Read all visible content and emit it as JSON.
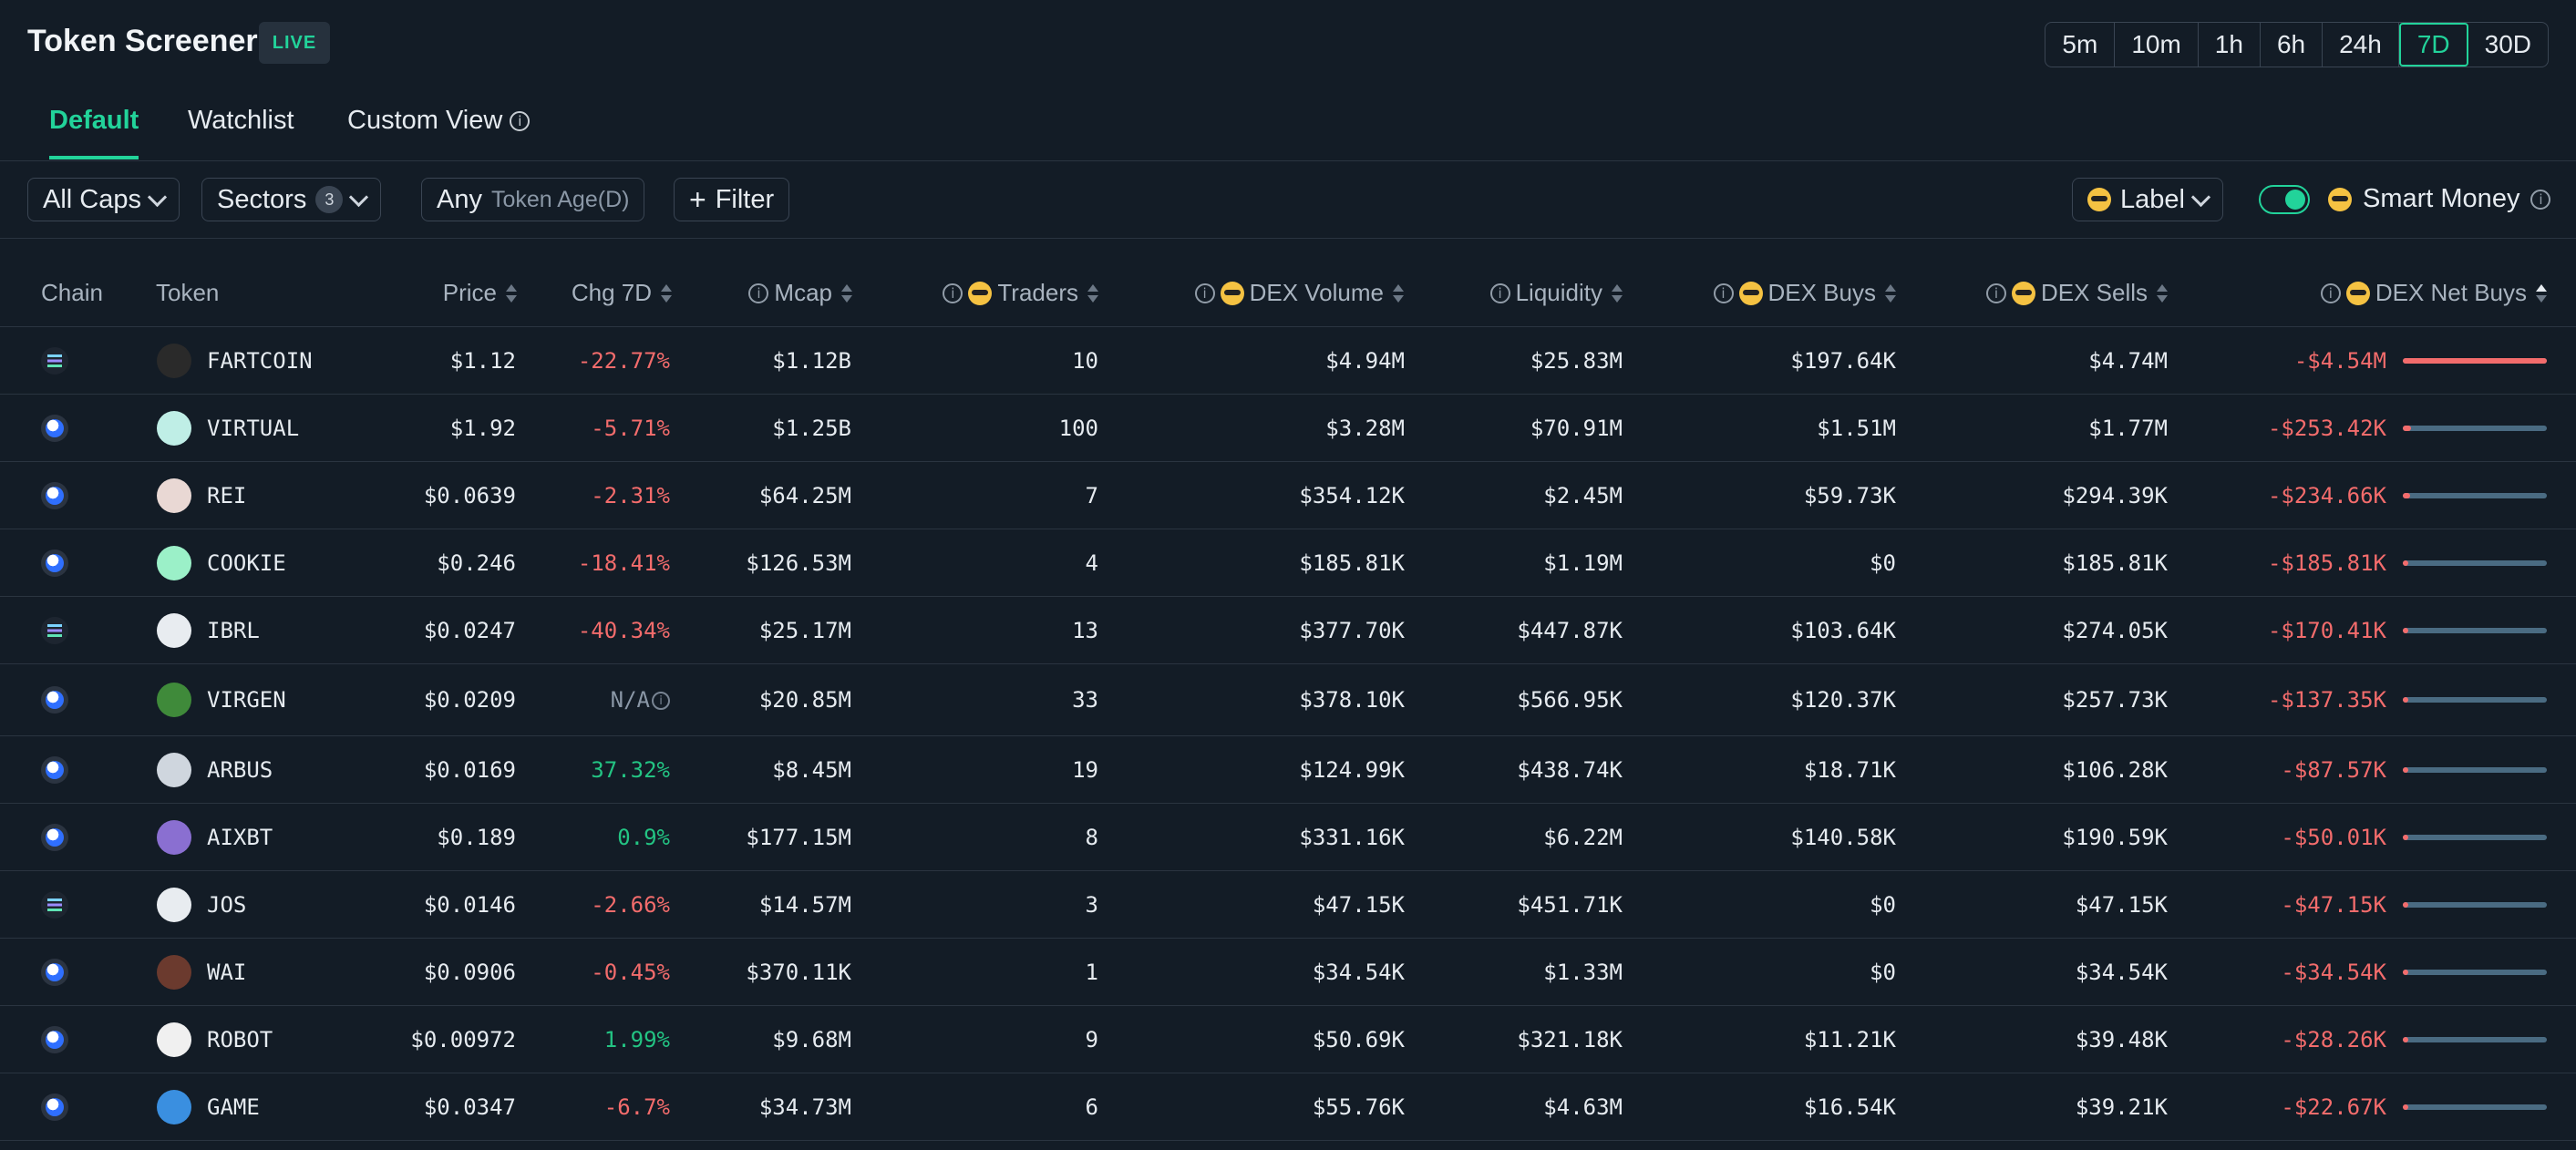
{
  "header": {
    "title": "Token Screener",
    "live_badge": "LIVE",
    "time_ranges": [
      "5m",
      "10m",
      "1h",
      "6h",
      "24h",
      "7D",
      "30D"
    ],
    "active_time_range": "7D"
  },
  "tabs": [
    {
      "label": "Default",
      "active": true
    },
    {
      "label": "Watchlist",
      "active": false
    },
    {
      "label": "Custom View",
      "active": false
    }
  ],
  "filters": {
    "caps": "All Caps",
    "sectors": "Sectors",
    "sectors_count": "3",
    "age_any": "Any",
    "age_label": "Token Age(D)",
    "filter": "Filter",
    "label": "Label",
    "smart_money": "Smart Money",
    "smart_money_enabled": true
  },
  "columns": {
    "chain": "Chain",
    "token": "Token",
    "price": "Price",
    "chg": "Chg 7D",
    "mcap": "Mcap",
    "traders": "Traders",
    "dex_volume": "DEX Volume",
    "liquidity": "Liquidity",
    "dex_buys": "DEX Buys",
    "dex_sells": "DEX Sells",
    "dex_net_buys": "DEX Net Buys"
  },
  "colors": {
    "accent": "#22d39a",
    "negative": "#f36c6c",
    "positive": "#23c483",
    "background": "#131c26"
  },
  "rows": [
    {
      "chain": "solana",
      "icon": "fartcoin-icon",
      "icon_color": "#2a2a2a",
      "token": "FARTCOIN",
      "price": "$1.12",
      "chg": "-22.77%",
      "chg_dir": "neg",
      "mcap": "$1.12B",
      "traders": "10",
      "dex_volume": "$4.94M",
      "liquidity": "$25.83M",
      "dex_buys": "$197.64K",
      "dex_sells": "$4.74M",
      "net_buys": "-$4.54M",
      "net_share": 1.0
    },
    {
      "chain": "base",
      "icon": "virtual-icon",
      "icon_color": "#bfeee6",
      "token": "VIRTUAL",
      "price": "$1.92",
      "chg": "-5.71%",
      "chg_dir": "neg",
      "mcap": "$1.25B",
      "traders": "100",
      "dex_volume": "$3.28M",
      "liquidity": "$70.91M",
      "dex_buys": "$1.51M",
      "dex_sells": "$1.77M",
      "net_buys": "-$253.42K",
      "net_share": 0.056
    },
    {
      "chain": "base",
      "icon": "rei-icon",
      "icon_color": "#e9d8d4",
      "token": "REI",
      "price": "$0.0639",
      "chg": "-2.31%",
      "chg_dir": "neg",
      "mcap": "$64.25M",
      "traders": "7",
      "dex_volume": "$354.12K",
      "liquidity": "$2.45M",
      "dex_buys": "$59.73K",
      "dex_sells": "$294.39K",
      "net_buys": "-$234.66K",
      "net_share": 0.052
    },
    {
      "chain": "base",
      "icon": "cookie-icon",
      "icon_color": "#9bf0c8",
      "token": "COOKIE",
      "price": "$0.246",
      "chg": "-18.41%",
      "chg_dir": "neg",
      "mcap": "$126.53M",
      "traders": "4",
      "dex_volume": "$185.81K",
      "liquidity": "$1.19M",
      "dex_buys": "$0",
      "dex_sells": "$185.81K",
      "net_buys": "-$185.81K",
      "net_share": 0.041
    },
    {
      "chain": "solana",
      "icon": "ibrl-icon",
      "icon_color": "#e8ecf0",
      "token": "IBRL",
      "price": "$0.0247",
      "chg": "-40.34%",
      "chg_dir": "neg",
      "mcap": "$25.17M",
      "traders": "13",
      "dex_volume": "$377.70K",
      "liquidity": "$447.87K",
      "dex_buys": "$103.64K",
      "dex_sells": "$274.05K",
      "net_buys": "-$170.41K",
      "net_share": 0.038
    },
    {
      "chain": "base",
      "icon": "virgen-icon",
      "icon_color": "#3f8a3a",
      "token": "VIRGEN",
      "price": "$0.0209",
      "chg": "N/A",
      "chg_dir": "na",
      "mcap": "$20.85M",
      "traders": "33",
      "dex_volume": "$378.10K",
      "liquidity": "$566.95K",
      "dex_buys": "$120.37K",
      "dex_sells": "$257.73K",
      "net_buys": "-$137.35K",
      "net_share": 0.03
    },
    {
      "chain": "base",
      "icon": "arbus-icon",
      "icon_color": "#cfd6de",
      "token": "ARBUS",
      "price": "$0.0169",
      "chg": "37.32%",
      "chg_dir": "pos",
      "mcap": "$8.45M",
      "traders": "19",
      "dex_volume": "$124.99K",
      "liquidity": "$438.74K",
      "dex_buys": "$18.71K",
      "dex_sells": "$106.28K",
      "net_buys": "-$87.57K",
      "net_share": 0.019
    },
    {
      "chain": "base",
      "icon": "aixbt-icon",
      "icon_color": "#8a6fd1",
      "token": "AIXBT",
      "price": "$0.189",
      "chg": "0.9%",
      "chg_dir": "pos",
      "mcap": "$177.15M",
      "traders": "8",
      "dex_volume": "$331.16K",
      "liquidity": "$6.22M",
      "dex_buys": "$140.58K",
      "dex_sells": "$190.59K",
      "net_buys": "-$50.01K",
      "net_share": 0.011
    },
    {
      "chain": "solana",
      "icon": "jos-icon",
      "icon_color": "#e8ecf0",
      "token": "JOS",
      "price": "$0.0146",
      "chg": "-2.66%",
      "chg_dir": "neg",
      "mcap": "$14.57M",
      "traders": "3",
      "dex_volume": "$47.15K",
      "liquidity": "$451.71K",
      "dex_buys": "$0",
      "dex_sells": "$47.15K",
      "net_buys": "-$47.15K",
      "net_share": 0.01
    },
    {
      "chain": "base",
      "icon": "wai-icon",
      "icon_color": "#6b3a2e",
      "token": "WAI",
      "price": "$0.0906",
      "chg": "-0.45%",
      "chg_dir": "neg",
      "mcap": "$370.11K",
      "traders": "1",
      "dex_volume": "$34.54K",
      "liquidity": "$1.33M",
      "dex_buys": "$0",
      "dex_sells": "$34.54K",
      "net_buys": "-$34.54K",
      "net_share": 0.008
    },
    {
      "chain": "base",
      "icon": "robot-icon",
      "icon_color": "#f0f0f0",
      "token": "ROBOT",
      "price": "$0.00972",
      "chg": "1.99%",
      "chg_dir": "pos",
      "mcap": "$9.68M",
      "traders": "9",
      "dex_volume": "$50.69K",
      "liquidity": "$321.18K",
      "dex_buys": "$11.21K",
      "dex_sells": "$39.48K",
      "net_buys": "-$28.26K",
      "net_share": 0.006
    },
    {
      "chain": "base",
      "icon": "game-icon",
      "icon_color": "#3a8fe0",
      "token": "GAME",
      "price": "$0.0347",
      "chg": "-6.7%",
      "chg_dir": "neg",
      "mcap": "$34.73M",
      "traders": "6",
      "dex_volume": "$55.76K",
      "liquidity": "$4.63M",
      "dex_buys": "$16.54K",
      "dex_sells": "$39.21K",
      "net_buys": "-$22.67K",
      "net_share": 0.005
    }
  ]
}
